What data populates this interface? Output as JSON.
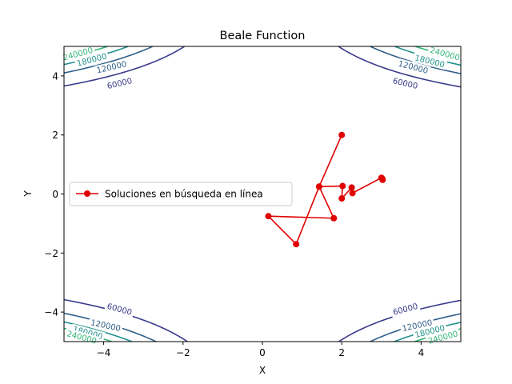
{
  "chart_data": {
    "type": "line",
    "title": "Beale Function",
    "xlabel": "X",
    "ylabel": "Y",
    "xlim": [
      -5,
      5
    ],
    "ylim": [
      -5,
      5
    ],
    "xticks": [
      -4,
      -2,
      0,
      2,
      4
    ],
    "yticks": [
      -4,
      -2,
      0,
      2,
      4
    ],
    "grid": false,
    "legend_position": "center-left",
    "contour_levels": [
      {
        "value": 60000,
        "label": "60000",
        "color": "#3b3a8c"
      },
      {
        "value": 120000,
        "label": "120000",
        "color": "#2f5f8a"
      },
      {
        "value": 180000,
        "label": "180000",
        "color": "#21918c"
      },
      {
        "value": 240000,
        "label": "240000",
        "color": "#35b779"
      },
      {
        "value": 300000,
        "label": "",
        "color": "#90d743"
      }
    ],
    "series": [
      {
        "name": "Soluciones en búsqueda en línea",
        "color": "#e00000",
        "marker": "circle",
        "x": [
          2.0,
          1.43,
          0.85,
          0.15,
          1.8,
          1.43,
          2.02,
          2.0,
          2.25,
          2.27,
          3.0,
          3.02,
          3.03
        ],
        "y": [
          2.0,
          0.25,
          -1.7,
          -0.75,
          -0.82,
          0.25,
          0.27,
          -0.15,
          0.22,
          0.03,
          0.55,
          0.52,
          0.48
        ]
      }
    ]
  }
}
